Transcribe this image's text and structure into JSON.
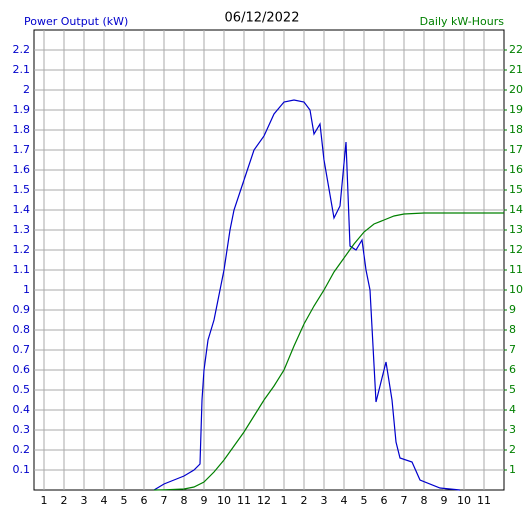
{
  "chart_data": {
    "type": "line",
    "title": "06/12/2022",
    "y_label": "Power Output (kW)",
    "y2_label": "Daily kW-Hours",
    "xlim": [
      0.5,
      24
    ],
    "xticks": [
      1,
      2,
      3,
      4,
      5,
      6,
      7,
      8,
      9,
      10,
      11,
      12,
      {
        "value": 13,
        "label": "1"
      },
      {
        "value": 14,
        "label": "2"
      },
      {
        "value": 15,
        "label": "3"
      },
      {
        "value": 16,
        "label": "4"
      },
      {
        "value": 17,
        "label": "5"
      },
      {
        "value": 18,
        "label": "6"
      },
      {
        "value": 19,
        "label": "7"
      },
      {
        "value": 20,
        "label": "8"
      },
      {
        "value": 21,
        "label": "9"
      },
      {
        "value": 22,
        "label": "10"
      },
      {
        "value": 23,
        "label": "11"
      }
    ],
    "ylim": [
      0,
      2.3
    ],
    "yticks": [
      0.1,
      0.2,
      0.3,
      0.4,
      0.5,
      0.6,
      0.7,
      0.8,
      0.9,
      1.0,
      1.1,
      1.2,
      1.3,
      1.4,
      1.5,
      1.6,
      1.7,
      1.8,
      1.9,
      2.0,
      2.1,
      2.2
    ],
    "y2lim": [
      0,
      23
    ],
    "y2ticks": [
      1,
      2,
      3,
      4,
      5,
      6,
      7,
      8,
      9,
      10,
      11,
      12,
      13,
      14,
      15,
      16,
      17,
      18,
      19,
      20,
      21,
      22
    ],
    "grid": true,
    "series": [
      {
        "name": "Power Output (kW)",
        "color": "#0000cc",
        "x": [
          6.5,
          7,
          7.5,
          8,
          8.5,
          8.8,
          8.9,
          9,
          9.2,
          9.5,
          9.7,
          10,
          10.3,
          10.5,
          11,
          11.5,
          12,
          12.5,
          13,
          13.5,
          14,
          14.3,
          14.5,
          14.8,
          15,
          15.5,
          15.8,
          16.1,
          16.3,
          16.6,
          16.9,
          17.1,
          17.3,
          17.6,
          18.1,
          18.4,
          18.6,
          18.8,
          19.4,
          19.8,
          20.8,
          21.8
        ],
        "values": [
          0,
          0.03,
          0.05,
          0.07,
          0.1,
          0.13,
          0.45,
          0.6,
          0.75,
          0.85,
          0.95,
          1.1,
          1.3,
          1.4,
          1.55,
          1.7,
          1.77,
          1.88,
          1.94,
          1.95,
          1.94,
          1.9,
          1.78,
          1.83,
          1.65,
          1.36,
          1.42,
          1.74,
          1.22,
          1.2,
          1.25,
          1.1,
          1.0,
          0.44,
          0.64,
          0.45,
          0.24,
          0.16,
          0.14,
          0.05,
          0.01,
          0
        ]
      },
      {
        "name": "Daily kW-Hours",
        "color": "#008000",
        "axis": "y2",
        "x": [
          6.5,
          7,
          8,
          8.5,
          9,
          9.5,
          10,
          10.5,
          11,
          11.5,
          12,
          12.5,
          13,
          13.5,
          14,
          14.5,
          15,
          15.5,
          16,
          16.5,
          17,
          17.5,
          18,
          18.5,
          19,
          20,
          24
        ],
        "values": [
          0,
          0.01,
          0.05,
          0.15,
          0.4,
          0.9,
          1.5,
          2.2,
          2.9,
          3.7,
          4.5,
          5.2,
          6.0,
          7.2,
          8.3,
          9.2,
          10,
          10.9,
          11.6,
          12.3,
          12.9,
          13.3,
          13.5,
          13.7,
          13.8,
          13.85,
          13.85
        ]
      }
    ]
  }
}
